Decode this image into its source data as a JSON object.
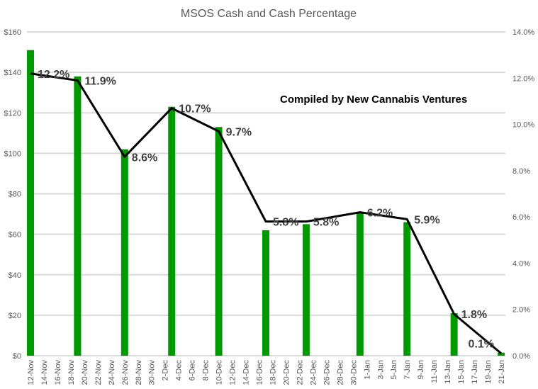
{
  "chart_data": {
    "type": "bar+line",
    "title": "MSOS Cash and Cash Percentage",
    "annotation": "Compiled by New Cannabis Ventures",
    "x_tick_labels": [
      "12-Nov",
      "14-Nov",
      "16-Nov",
      "18-Nov",
      "20-Nov",
      "22-Nov",
      "24-Nov",
      "26-Nov",
      "28-Nov",
      "30-Nov",
      "2-Dec",
      "4-Dec",
      "6-Dec",
      "8-Dec",
      "10-Dec",
      "12-Dec",
      "14-Dec",
      "16-Dec",
      "18-Dec",
      "20-Dec",
      "22-Dec",
      "24-Dec",
      "26-Dec",
      "28-Dec",
      "30-Dec",
      "1-Jan",
      "3-Jan",
      "5-Jan",
      "7-Jan",
      "9-Jan",
      "11-Jan",
      "13-Jan",
      "15-Jan",
      "17-Jan",
      "19-Jan",
      "21-Jan"
    ],
    "x": [
      "12-Nov",
      "19-Nov",
      "26-Nov",
      "3-Dec",
      "10-Dec",
      "17-Dec",
      "23-Dec",
      "31-Dec",
      "7-Jan",
      "14-Jan",
      "21-Jan"
    ],
    "series": [
      {
        "type": "bar",
        "axis": "left",
        "color": "#009900",
        "values": [
          151,
          138,
          102,
          123,
          113,
          62,
          65,
          71,
          66,
          21,
          1.5
        ]
      },
      {
        "type": "line",
        "axis": "right",
        "color": "#000000",
        "values": [
          12.2,
          11.9,
          8.6,
          10.7,
          9.7,
          5.8,
          5.8,
          6.2,
          5.9,
          1.8,
          0.1
        ],
        "data_labels": [
          "12.2%",
          "11.9%",
          "8.6%",
          "10.7%",
          "9.7%",
          "5.8%",
          "5.8%",
          "6.2%",
          "5.9%",
          "1.8%",
          "0.1%"
        ]
      }
    ],
    "y_left": {
      "range": [
        0,
        160
      ],
      "ticks": [
        "$0",
        "$20",
        "$40",
        "$60",
        "$80",
        "$100",
        "$120",
        "$140",
        "$160"
      ]
    },
    "y_right": {
      "range": [
        0,
        14
      ],
      "ticks": [
        "0.0%",
        "2.0%",
        "4.0%",
        "6.0%",
        "8.0%",
        "10.0%",
        "12.0%",
        "14.0%"
      ]
    },
    "grid": true,
    "legend": "none"
  }
}
